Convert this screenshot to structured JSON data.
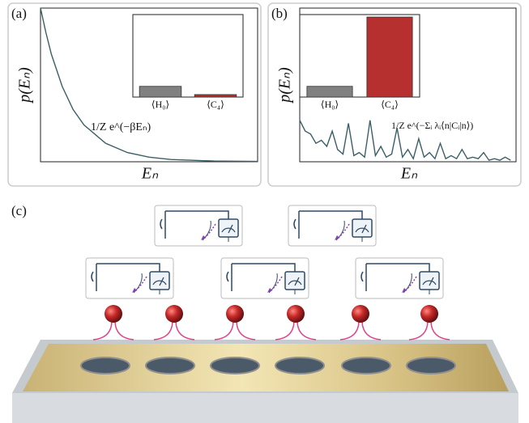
{
  "chart_data": [
    {
      "type": "line",
      "panel_label": "(a)",
      "ylabel": "p(Eₙ)",
      "xlabel": "Eₙ",
      "annotation": "1/Z e^(−βEₙ)",
      "color": "#3a5f66",
      "x": [
        0,
        0.25,
        0.5,
        1,
        1.5,
        2,
        3,
        4,
        5,
        6,
        8,
        10
      ],
      "values": [
        1,
        0.84,
        0.7,
        0.49,
        0.34,
        0.24,
        0.12,
        0.06,
        0.03,
        0.015,
        0.005,
        0.002
      ],
      "xlim": [
        0,
        10
      ],
      "ylim": [
        0,
        1
      ]
    },
    {
      "type": "bar",
      "categories": [
        "⟨H₀⟩",
        "⟨C₄⟩"
      ],
      "values": [
        0.13,
        0.03
      ],
      "colors": [
        "#808080",
        "#b5302e"
      ],
      "ylim": [
        0,
        1
      ]
    },
    {
      "type": "line",
      "panel_label": "(b)",
      "ylabel": "p(Eₙ)",
      "xlabel": "Eₙ",
      "annotation": "1/Z e^(−Σᵢ λᵢ⟨n|Cᵢ|n⟩)",
      "color": "#3a5f66",
      "x": [
        0,
        1,
        2,
        3,
        4,
        5,
        6,
        7,
        8,
        9,
        10,
        11,
        12,
        13,
        14,
        15,
        16,
        17,
        18,
        19,
        20,
        21,
        22,
        23,
        24,
        25,
        26,
        27,
        28,
        29,
        30,
        31,
        32,
        33,
        34,
        35,
        36,
        37,
        38,
        39
      ],
      "values": [
        0.27,
        0.2,
        0.18,
        0.12,
        0.14,
        0.1,
        0.2,
        0.08,
        0.05,
        0.25,
        0.04,
        0.06,
        0.03,
        0.27,
        0.04,
        0.1,
        0.03,
        0.05,
        0.22,
        0.03,
        0.08,
        0.02,
        0.15,
        0.03,
        0.06,
        0.02,
        0.12,
        0.02,
        0.04,
        0.02,
        0.08,
        0.02,
        0.03,
        0.02,
        0.06,
        0.01,
        0.02,
        0.01,
        0.03,
        0.01
      ],
      "xlim": [
        0,
        40
      ],
      "ylim": [
        0,
        1
      ]
    },
    {
      "type": "bar",
      "categories": [
        "⟨H₀⟩",
        "⟨C₄⟩"
      ],
      "values": [
        0.13,
        0.97
      ],
      "colors": [
        "#808080",
        "#b5302e"
      ],
      "ylim": [
        0,
        1
      ]
    }
  ],
  "diagram": {
    "label": "(c)"
  }
}
